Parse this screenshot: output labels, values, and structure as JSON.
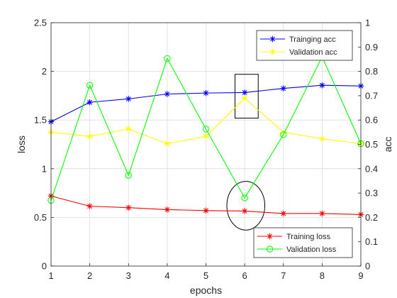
{
  "chart_data": {
    "type": "line",
    "xlabel": "epochs",
    "ylabel_left": "loss",
    "ylabel_right": "acc",
    "x": [
      1,
      2,
      3,
      4,
      5,
      6,
      7,
      8,
      9
    ],
    "xlim": [
      1,
      9
    ],
    "ylim_left": [
      0,
      2.5
    ],
    "ylim_right": [
      0,
      1
    ],
    "x_ticks": [
      "1",
      "2",
      "3",
      "4",
      "5",
      "6",
      "7",
      "8",
      "9"
    ],
    "y_ticks_left": [
      "0",
      "0.5",
      "1",
      "1.5",
      "2",
      "2.5"
    ],
    "y_ticks_right": [
      "0",
      "0.1",
      "0.2",
      "0.3",
      "0.4",
      "0.5",
      "0.6",
      "0.7",
      "0.8",
      "0.9",
      "1"
    ],
    "grid": true,
    "series": [
      {
        "name": "Trainging acc",
        "axis": "right",
        "color": "#0000ff",
        "marker": "asterisk",
        "values": [
          0.593,
          0.673,
          0.687,
          0.707,
          0.711,
          0.713,
          0.73,
          0.743,
          0.74
        ]
      },
      {
        "name": "Validation acc",
        "axis": "right",
        "color": "#ffff00",
        "marker": "asterisk",
        "values": [
          0.55,
          0.533,
          0.563,
          0.503,
          0.533,
          0.69,
          0.55,
          0.523,
          0.503
        ]
      },
      {
        "name": "Training loss",
        "axis": "left",
        "color": "#ff0000",
        "marker": "asterisk",
        "values": [
          0.72,
          0.615,
          0.6,
          0.58,
          0.57,
          0.565,
          0.54,
          0.54,
          0.53
        ]
      },
      {
        "name": "Validation loss",
        "axis": "right",
        "color": "#00ff00",
        "marker": "circle",
        "values": [
          0.27,
          0.743,
          0.373,
          0.853,
          0.563,
          0.28,
          0.54,
          0.86,
          0.503
        ]
      }
    ],
    "legends": [
      {
        "position": "top-right",
        "entries": [
          "Trainging acc",
          "Validation acc"
        ]
      },
      {
        "position": "bottom-right",
        "entries": [
          "Training loss",
          "Validation loss"
        ]
      }
    ],
    "annotations": [
      {
        "shape": "rectangle",
        "color": "#000000",
        "x_range": [
          5.75,
          6.35
        ],
        "y_left_range": [
          1.52,
          1.97
        ]
      },
      {
        "shape": "ellipse",
        "color": "#000000",
        "cx": 6.03,
        "cy_left": 0.62,
        "rx_x": 0.49,
        "ry_left": 0.25
      }
    ]
  }
}
